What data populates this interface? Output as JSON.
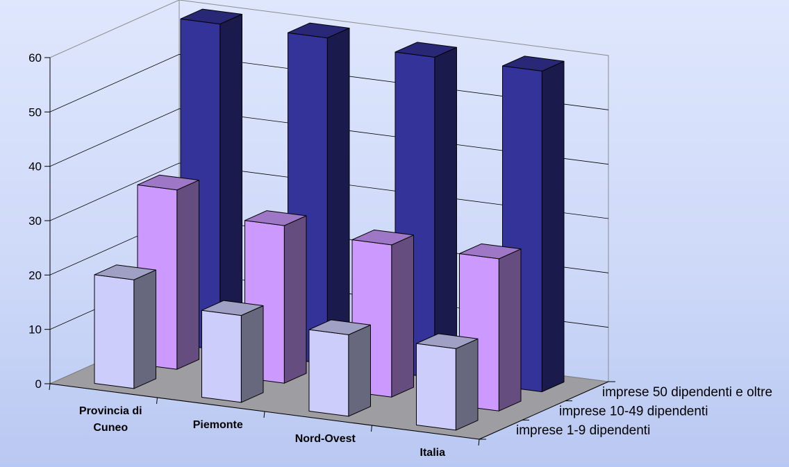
{
  "chart_data": {
    "type": "bar",
    "subtype": "3d-column",
    "title": "",
    "xlabel": "",
    "ylabel": "",
    "ylim": [
      0,
      60
    ],
    "yticks": [
      0,
      10,
      20,
      30,
      40,
      50,
      60
    ],
    "grid": true,
    "categories": [
      "Provincia di Cuneo",
      "Piemonte",
      "Nord-Ovest",
      "Italia"
    ],
    "category_lines": [
      [
        "Provincia di",
        "Cuneo"
      ],
      [
        "Piemonte"
      ],
      [
        "Nord-Ovest"
      ],
      [
        "Italia"
      ]
    ],
    "series": [
      {
        "name": "imprese 1-9 dipendenti",
        "values": [
          20,
          16,
          15,
          15
        ],
        "color": "#cdcdfb"
      },
      {
        "name": "imprese 10-49 dipendenti",
        "values": [
          33,
          29,
          28,
          28
        ],
        "color": "#cc99ff"
      },
      {
        "name": "imprese 50 dipendenti e oltre",
        "values": [
          60,
          60,
          59,
          59
        ],
        "color": "#333399"
      }
    ],
    "floor_color": "#9e9ea2",
    "legend": "series-axis-right"
  }
}
